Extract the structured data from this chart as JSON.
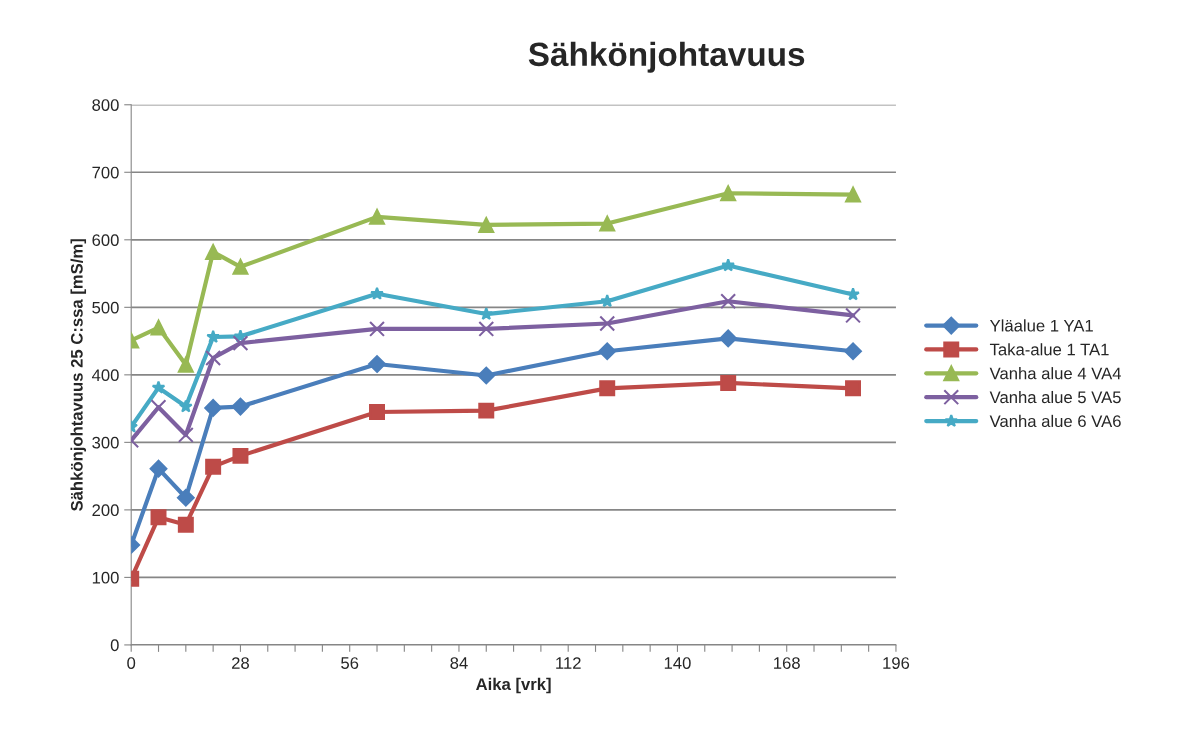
{
  "chart_data": {
    "type": "line",
    "title": "Sähkönjohtavuus",
    "xlabel": "Aika [vrk]",
    "ylabel": "Sähkönjohtavuus 25 C:ssa [mS/m]",
    "x": [
      0,
      7,
      14,
      21,
      28,
      63,
      91,
      122,
      153,
      185
    ],
    "series": [
      {
        "name": "Yläalue 1 YA1",
        "color": "#4a7ebb",
        "marker": "diamond",
        "values": [
          148,
          261,
          218,
          351,
          353,
          416,
          399,
          435,
          454,
          435
        ]
      },
      {
        "name": "Taka-alue 1 TA1",
        "color": "#be4b48",
        "marker": "square",
        "values": [
          98,
          189,
          178,
          264,
          280,
          345,
          347,
          380,
          388,
          380
        ]
      },
      {
        "name": "Vanha alue 4 VA4",
        "color": "#98b954",
        "marker": "triangle",
        "values": [
          451,
          470,
          415,
          582,
          560,
          634,
          622,
          624,
          669,
          667
        ]
      },
      {
        "name": "Vanha alue 5 VA5",
        "color": "#7d60a0",
        "marker": "cross",
        "values": [
          303,
          352,
          311,
          425,
          447,
          468,
          468,
          476,
          509,
          488
        ]
      },
      {
        "name": "Vanha alue 6 VA6",
        "color": "#46aac5",
        "marker": "star",
        "values": [
          323,
          381,
          353,
          456,
          457,
          520,
          490,
          509,
          562,
          519
        ]
      }
    ],
    "xlim": [
      0,
      196
    ],
    "xticks": [
      0,
      {
        "value": 7,
        "label": null
      },
      {
        "value": 14,
        "label": null
      },
      {
        "value": 21,
        "label": null
      },
      28,
      {
        "value": 35,
        "label": null
      },
      {
        "value": 42,
        "label": null
      },
      {
        "value": 49,
        "label": null
      },
      56,
      {
        "value": 63,
        "label": null
      },
      {
        "value": 70,
        "label": null
      },
      {
        "value": 77,
        "label": null
      },
      84,
      {
        "value": 91,
        "label": null
      },
      {
        "value": 98,
        "label": null
      },
      {
        "value": 105,
        "label": null
      },
      112,
      {
        "value": 119,
        "label": null
      },
      {
        "value": 126,
        "label": null
      },
      {
        "value": 133,
        "label": null
      },
      140,
      {
        "value": 147,
        "label": null
      },
      {
        "value": 154,
        "label": null
      },
      {
        "value": 161,
        "label": null
      },
      168,
      {
        "value": 175,
        "label": null
      },
      {
        "value": 182,
        "label": null
      },
      {
        "value": 189,
        "label": null
      },
      196
    ],
    "ylim": [
      0,
      800
    ],
    "yticks": [
      0,
      100,
      200,
      300,
      400,
      500,
      600,
      700,
      800
    ],
    "grid": "y",
    "legend": "right",
    "line_style": "solid"
  }
}
